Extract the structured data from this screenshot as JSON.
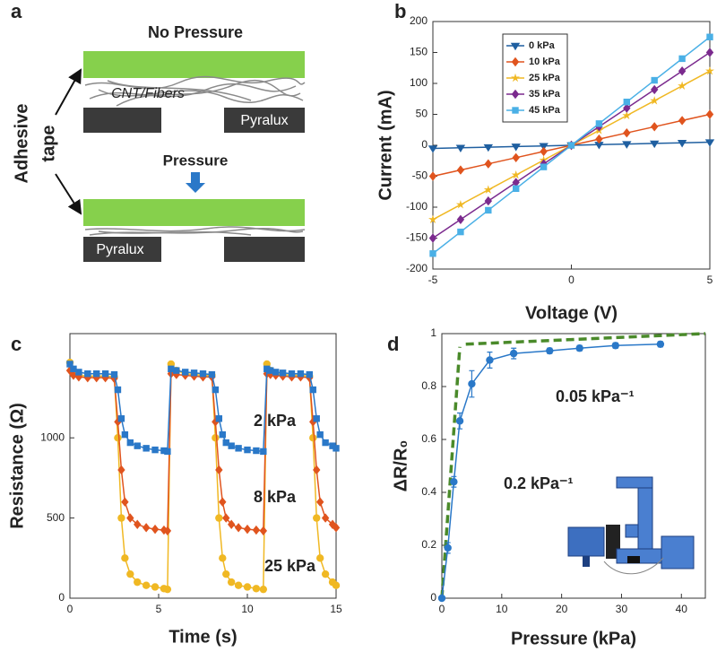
{
  "panel_a": {
    "label": "a",
    "title": "No Pressure",
    "fiber_label": "CNT/Fibers",
    "pyralux_top": "Pyralux",
    "tape_label_1": "Adhesive",
    "tape_label_2": "tape",
    "pressure_label": "Pressure",
    "pyralux_bottom": "Pyralux"
  },
  "chart_data": [
    {
      "type": "line",
      "panel_label": "b",
      "xlabel": "Voltage (V)",
      "ylabel": "Current (mA)",
      "x": [
        -5,
        -4,
        -3,
        -2,
        -1,
        0,
        1,
        2,
        3,
        4,
        5
      ],
      "series": [
        {
          "name": "0 kPa",
          "color": "#1f5fa0",
          "marker": "triangle-down",
          "values": [
            -5,
            -4,
            -3,
            -2,
            -1,
            0,
            1,
            2,
            3,
            4,
            5
          ]
        },
        {
          "name": "10 kPa",
          "color": "#e0541e",
          "marker": "diamond",
          "values": [
            -50,
            -40,
            -30,
            -20,
            -10,
            0,
            10,
            20,
            30,
            40,
            50
          ]
        },
        {
          "name": "25 kPa",
          "color": "#f0b823",
          "marker": "star",
          "values": [
            -120,
            -96,
            -72,
            -48,
            -24,
            0,
            24,
            48,
            72,
            96,
            120
          ]
        },
        {
          "name": "35 kPa",
          "color": "#7b2a8e",
          "marker": "diamond",
          "values": [
            -150,
            -120,
            -90,
            -60,
            -30,
            0,
            30,
            60,
            90,
            120,
            150
          ]
        },
        {
          "name": "45 kPa",
          "color": "#4ab0e6",
          "marker": "square",
          "values": [
            -175,
            -140,
            -105,
            -70,
            -35,
            0,
            35,
            70,
            105,
            140,
            175
          ]
        }
      ],
      "xlim": [
        -5,
        5
      ],
      "xticks": [
        -5,
        0,
        5
      ],
      "ylim": [
        -200,
        200
      ],
      "yticks": [
        -200,
        -150,
        -100,
        -50,
        0,
        50,
        100,
        150,
        200
      ],
      "legend": "upper left"
    },
    {
      "type": "line",
      "panel_label": "c",
      "xlabel": "Time (s)",
      "ylabel": "Resistance (Ω)",
      "x": [
        0,
        0.2,
        0.5,
        1,
        1.5,
        2,
        2.5,
        2.7,
        2.9,
        3.1,
        3.4,
        3.8,
        4.3,
        4.8,
        5.3,
        5.5,
        5.7,
        6,
        6.5,
        7,
        7.5,
        8,
        8.2,
        8.4,
        8.6,
        8.8,
        9.1,
        9.5,
        10,
        10.5,
        10.9,
        11.1,
        11.3,
        11.6,
        12,
        12.5,
        13,
        13.5,
        13.7,
        13.9,
        14.1,
        14.4,
        14.8,
        15
      ],
      "series": [
        {
          "color": "#f0b823",
          "marker": "circle",
          "values": [
            1470,
            1400,
            1390,
            1385,
            1385,
            1385,
            1380,
            1000,
            500,
            250,
            150,
            100,
            80,
            70,
            60,
            55,
            1460,
            1420,
            1400,
            1395,
            1390,
            1390,
            1000,
            500,
            250,
            150,
            100,
            80,
            70,
            60,
            55,
            1460,
            1420,
            1400,
            1395,
            1390,
            1390,
            1385,
            1000,
            500,
            250,
            150,
            100,
            80
          ]
        },
        {
          "color": "#e0541e",
          "marker": "diamond",
          "values": [
            1420,
            1390,
            1380,
            1375,
            1375,
            1375,
            1370,
            1100,
            800,
            600,
            500,
            460,
            440,
            430,
            425,
            420,
            1400,
            1395,
            1390,
            1385,
            1380,
            1380,
            1100,
            800,
            600,
            500,
            460,
            440,
            430,
            425,
            420,
            1400,
            1395,
            1390,
            1385,
            1380,
            1380,
            1375,
            1100,
            800,
            600,
            500,
            460,
            440
          ]
        },
        {
          "color": "#2a78c8",
          "marker": "square",
          "values": [
            1460,
            1430,
            1410,
            1400,
            1400,
            1400,
            1395,
            1300,
            1120,
            1020,
            970,
            950,
            935,
            925,
            920,
            915,
            1430,
            1420,
            1410,
            1405,
            1400,
            1395,
            1300,
            1120,
            1020,
            970,
            950,
            935,
            925,
            920,
            915,
            1430,
            1420,
            1410,
            1405,
            1400,
            1400,
            1395,
            1300,
            1120,
            1020,
            970,
            950,
            935
          ]
        }
      ],
      "annotations": [
        "2 kPa",
        "8 kPa",
        "25 kPa"
      ],
      "xlim": [
        0,
        15
      ],
      "xticks": [
        0,
        5,
        10,
        15
      ],
      "ylim": [
        0,
        1650
      ],
      "yticks": [
        0,
        500,
        1000
      ]
    },
    {
      "type": "line",
      "panel_label": "d",
      "xlabel": "Pressure (kPa)",
      "ylabel": "ΔR/R₀",
      "x": [
        0,
        1,
        2,
        3,
        5,
        8,
        12,
        18,
        23,
        29,
        36.5
      ],
      "values": [
        0,
        0.19,
        0.44,
        0.67,
        0.81,
        0.9,
        0.925,
        0.935,
        0.945,
        0.955,
        0.96
      ],
      "errors": [
        0,
        0.02,
        0.02,
        0.03,
        0.05,
        0.03,
        0.02,
        0.01,
        0.01,
        0.01,
        0.01
      ],
      "color": "#2a78c8",
      "marker": "circle",
      "fit_lines": [
        {
          "x": [
            0,
            3
          ],
          "y": [
            0,
            0.95
          ],
          "color": "#4a8a2a"
        },
        {
          "x": [
            4,
            44
          ],
          "y": [
            0.96,
            1.0
          ],
          "color": "#4a8a2a"
        }
      ],
      "annotations": [
        "0.05 kPa⁻¹",
        "0.2 kPa⁻¹"
      ],
      "xlim": [
        0,
        44
      ],
      "xticks": [
        0,
        10,
        20,
        30,
        40
      ],
      "ylim": [
        0,
        1
      ],
      "yticks": [
        0,
        0.2,
        0.4,
        0.6,
        0.8,
        1
      ]
    }
  ]
}
